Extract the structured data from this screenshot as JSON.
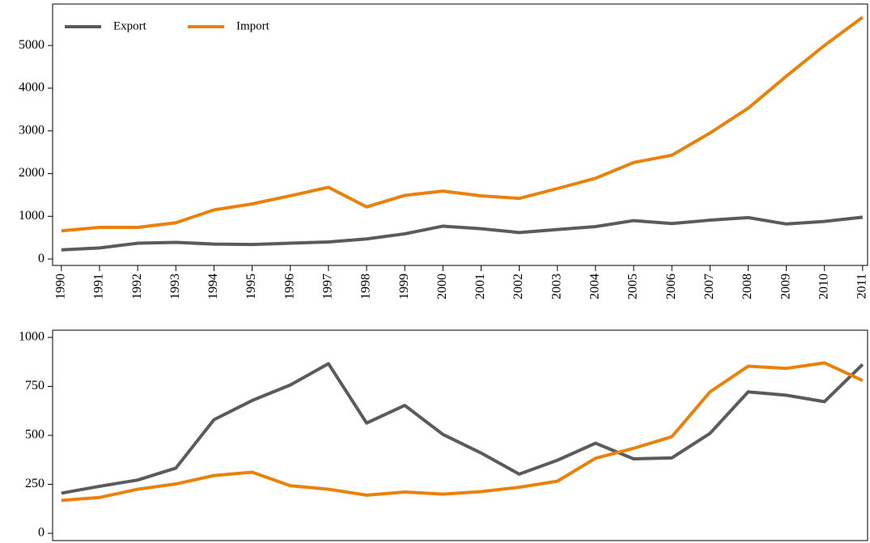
{
  "chart_data": [
    {
      "type": "line",
      "x": [
        1990,
        1991,
        1992,
        1993,
        1994,
        1995,
        1996,
        1997,
        1998,
        1999,
        2000,
        2001,
        2002,
        2003,
        2004,
        2005,
        2006,
        2007,
        2008,
        2009,
        2010,
        2011
      ],
      "series": [
        {
          "name": "Export",
          "color": "#5b5b5b",
          "values": [
            215,
            260,
            370,
            390,
            350,
            340,
            370,
            400,
            470,
            590,
            770,
            710,
            620,
            690,
            760,
            900,
            830,
            910,
            970,
            820,
            880,
            980
          ]
        },
        {
          "name": "Import",
          "color": "#e8820c",
          "values": [
            660,
            740,
            740,
            850,
            1150,
            1290,
            1480,
            1680,
            1220,
            1490,
            1590,
            1480,
            1420,
            1650,
            1890,
            2260,
            2430,
            2950,
            3530,
            4280,
            5000,
            5660
          ]
        }
      ],
      "xlim": [
        1989.77,
        2011.13
      ],
      "xticks": [
        1990,
        1991,
        1992,
        1993,
        1994,
        1995,
        1996,
        1997,
        1998,
        1999,
        2000,
        2001,
        2002,
        2003,
        2004,
        2005,
        2006,
        2007,
        2008,
        2009,
        2010,
        2011
      ],
      "ylim": [
        -150,
        5970
      ],
      "yticks": [
        0,
        1000,
        2000,
        3000,
        4000,
        5000
      ],
      "legend": "upper left"
    },
    {
      "type": "line",
      "x": [
        1990,
        1991,
        1992,
        1993,
        1994,
        1995,
        1996,
        1997,
        1998,
        1999,
        2000,
        2001,
        2002,
        2003,
        2004,
        2005,
        2006,
        2007,
        2008,
        2009,
        2010,
        2011
      ],
      "series": [
        {
          "color": "#5b5b5b",
          "values": [
            205,
            240,
            272,
            333,
            580,
            678,
            757,
            866,
            563,
            653,
            505,
            410,
            302,
            373,
            460,
            380,
            385,
            510,
            722,
            705,
            672,
            862
          ]
        },
        {
          "color": "#e8820c",
          "values": [
            168,
            183,
            225,
            252,
            295,
            312,
            243,
            225,
            195,
            211,
            200,
            213,
            235,
            266,
            383,
            434,
            493,
            722,
            853,
            842,
            870,
            780
          ]
        }
      ],
      "xlim": [
        1989.77,
        2011.13
      ],
      "ylim": [
        -37,
        1037
      ],
      "yticks": [
        0,
        250,
        500,
        750,
        1000
      ]
    }
  ]
}
